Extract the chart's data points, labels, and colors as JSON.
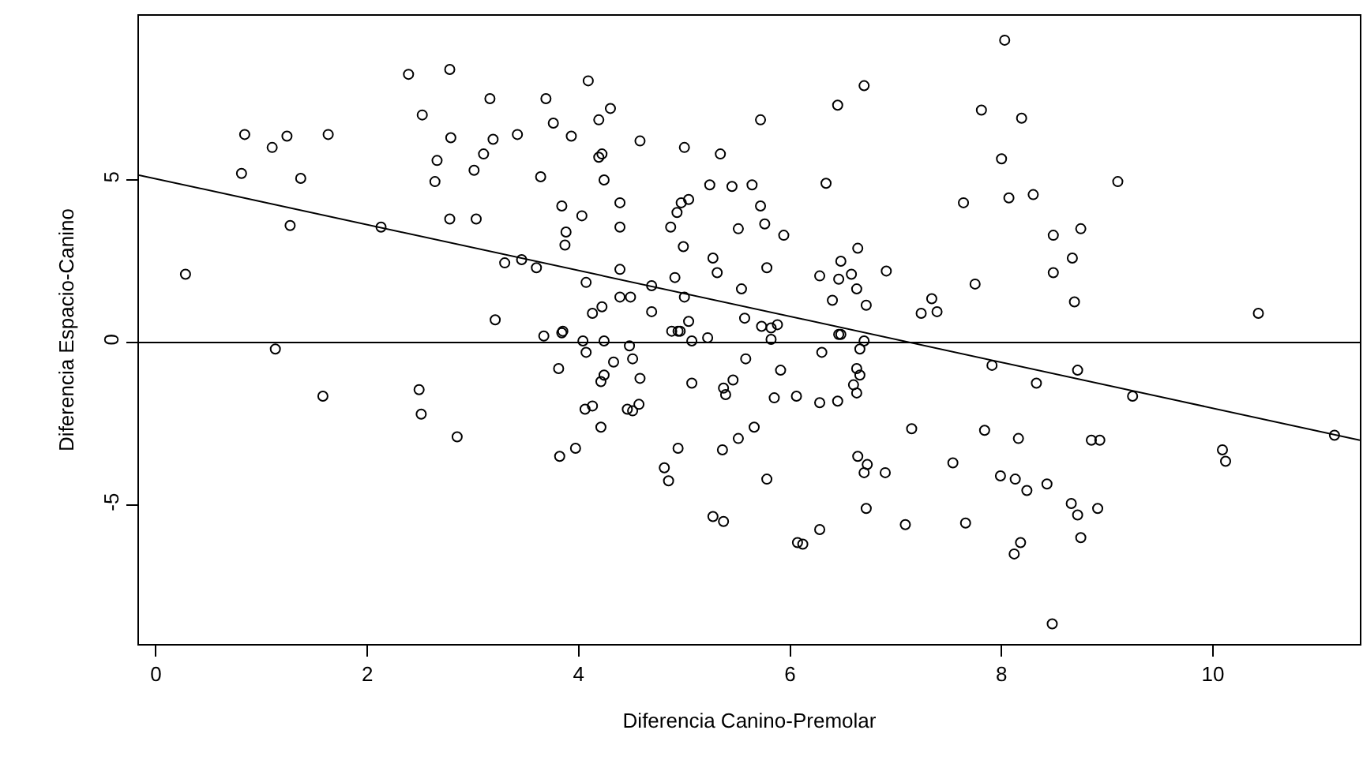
{
  "chart_data": {
    "type": "scatter",
    "xlabel": "Diferencia Canino-Premolar",
    "ylabel": "Diferencia Espacio-Canino",
    "xlim": [
      -0.16,
      11.39
    ],
    "ylim": [
      -9.27,
      10.05
    ],
    "xticks": [
      0,
      2,
      4,
      6,
      8,
      10
    ],
    "yticks": [
      -5,
      0,
      5
    ],
    "grid": false,
    "ref_lines": [
      {
        "axis": "y",
        "value": 0,
        "color": "#000000"
      }
    ],
    "series": [
      {
        "color": "#000000",
        "marker": "circle",
        "x": [
          0.84,
          1.1,
          1.24,
          1.63,
          0.81,
          1.37,
          1.27,
          2.13,
          0.28,
          2.39,
          2.78,
          3.16,
          3.69,
          2.52,
          2.79,
          3.19,
          3.42,
          2.66,
          3.1,
          2.64,
          3.01,
          3.64,
          2.78,
          3.03,
          3.3,
          3.46,
          3.6,
          3.21,
          3.67,
          1.13,
          1.58,
          2.49,
          2.51,
          2.85,
          4.09,
          4.3,
          4.19,
          3.76,
          3.93,
          4.58,
          4.22,
          4.19,
          5.0,
          5.34,
          5.72,
          6.45,
          6.7,
          4.24,
          5.24,
          5.45,
          5.64,
          6.34,
          3.84,
          4.03,
          4.39,
          4.39,
          3.88,
          3.87,
          5.04,
          4.97,
          4.93,
          4.87,
          4.99,
          5.72,
          5.76,
          5.51,
          5.94,
          5.27,
          5.31,
          5.78,
          5.54,
          4.39,
          4.07,
          4.69,
          4.91,
          4.39,
          4.49,
          4.13,
          4.22,
          4.69,
          5.0,
          5.04,
          4.94,
          5.57,
          5.73,
          5.82,
          5.88,
          6.28,
          6.48,
          6.64,
          6.46,
          6.58,
          6.63,
          6.4,
          6.72,
          6.91,
          7.34,
          7.24,
          7.39,
          6.46,
          3.85,
          3.84,
          4.04,
          4.24,
          4.48,
          4.07,
          4.33,
          4.51,
          3.81,
          4.24,
          4.21,
          4.58,
          4.06,
          4.13,
          4.46,
          4.51,
          4.57,
          4.21,
          3.82,
          3.97,
          4.88,
          4.96,
          5.07,
          5.22,
          5.07,
          5.58,
          5.82,
          5.37,
          5.39,
          5.46,
          5.91,
          5.85,
          6.06,
          6.28,
          6.45,
          6.3,
          6.48,
          6.66,
          6.7,
          6.63,
          6.66,
          6.6,
          6.63,
          5.66,
          5.51,
          5.36,
          4.94,
          4.81,
          4.85,
          5.78,
          5.27,
          5.37,
          6.28,
          6.07,
          6.12,
          6.64,
          6.73,
          6.7,
          6.9,
          6.72,
          7.15,
          7.09,
          8.03,
          7.81,
          8.19,
          8.0,
          9.1,
          7.64,
          8.07,
          8.3,
          8.49,
          8.75,
          8.67,
          8.49,
          7.75,
          8.69,
          10.43,
          7.91,
          8.72,
          8.33,
          9.24,
          11.15,
          10.09,
          10.12,
          7.84,
          8.16,
          8.85,
          8.93,
          7.54,
          7.99,
          8.13,
          8.24,
          8.43,
          8.66,
          8.72,
          8.91,
          7.66,
          8.18,
          8.12,
          8.75,
          8.48
        ],
        "values": [
          6.4,
          6.0,
          6.35,
          6.4,
          5.2,
          5.05,
          3.6,
          3.55,
          2.1,
          8.25,
          8.4,
          7.5,
          7.5,
          7.0,
          6.3,
          6.25,
          6.4,
          5.6,
          5.8,
          4.95,
          5.3,
          5.1,
          3.8,
          3.8,
          2.45,
          2.55,
          2.3,
          0.7,
          0.2,
          -0.2,
          -1.65,
          -1.45,
          -2.2,
          -2.9,
          8.05,
          7.2,
          6.85,
          6.75,
          6.35,
          6.2,
          5.8,
          5.7,
          6.0,
          5.8,
          6.85,
          7.3,
          7.9,
          5.0,
          4.85,
          4.8,
          4.85,
          4.9,
          4.2,
          3.9,
          4.3,
          3.55,
          3.4,
          3.0,
          4.4,
          4.3,
          4.0,
          3.55,
          2.95,
          4.2,
          3.65,
          3.5,
          3.3,
          2.6,
          2.15,
          2.3,
          1.65,
          2.25,
          1.85,
          1.75,
          2.0,
          1.4,
          1.4,
          0.9,
          1.1,
          0.95,
          1.4,
          0.65,
          0.35,
          0.75,
          0.5,
          0.45,
          0.55,
          2.05,
          2.5,
          2.9,
          1.95,
          2.1,
          1.65,
          1.3,
          1.15,
          2.2,
          1.35,
          0.9,
          0.95,
          0.25,
          0.35,
          0.3,
          0.05,
          0.05,
          -0.1,
          -0.3,
          -0.6,
          -0.5,
          -0.8,
          -1.0,
          -1.2,
          -1.1,
          -2.05,
          -1.95,
          -2.05,
          -2.1,
          -1.9,
          -2.6,
          -3.5,
          -3.25,
          0.35,
          0.35,
          0.05,
          0.15,
          -1.25,
          -0.5,
          0.1,
          -1.4,
          -1.6,
          -1.15,
          -0.85,
          -1.7,
          -1.65,
          -1.85,
          -1.8,
          -0.3,
          0.25,
          -0.2,
          0.05,
          -0.8,
          -1.0,
          -1.3,
          -1.55,
          -2.6,
          -2.95,
          -3.3,
          -3.25,
          -3.85,
          -4.25,
          -4.2,
          -5.35,
          -5.5,
          -5.75,
          -6.15,
          -6.2,
          -3.5,
          -3.75,
          -4.0,
          -4.0,
          -5.1,
          -2.65,
          -5.6,
          9.3,
          7.15,
          6.9,
          5.65,
          4.95,
          4.3,
          4.45,
          4.55,
          3.3,
          3.5,
          2.6,
          2.15,
          1.8,
          1.25,
          0.9,
          -0.7,
          -0.85,
          -1.25,
          -1.65,
          -2.85,
          -3.3,
          -3.65,
          -2.7,
          -2.95,
          -3.0,
          -3.0,
          -3.7,
          -4.1,
          -4.2,
          -4.55,
          -4.35,
          -4.95,
          -5.3,
          -5.1,
          -5.55,
          -6.15,
          -6.5,
          -6.0,
          -8.65
        ]
      },
      {
        "type": "line",
        "marker": "none",
        "color": "#000000",
        "x": [
          -0.16,
          11.39
        ],
        "values": [
          5.15,
          -3.0
        ]
      }
    ]
  }
}
